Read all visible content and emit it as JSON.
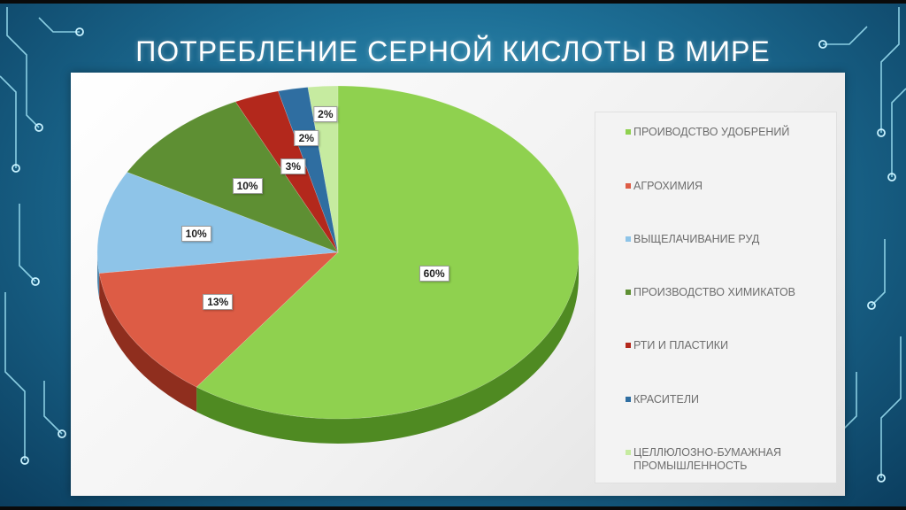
{
  "slide": {
    "title": "ПОТРЕБЛЕНИЕ СЕРНОЙ КИСЛОТЫ В МИРЕ"
  },
  "chart_data": {
    "type": "pie",
    "title": "ПОТРЕБЛЕНИЕ СЕРНОЙ КИСЛОТЫ В МИРЕ",
    "legend_position": "right",
    "three_d": true,
    "unit": "%",
    "slices": [
      {
        "name": "ПРОИВОДСТВО УДОБРЕНИЙ",
        "value": 60,
        "label": "60%",
        "color": "#8fd14f",
        "side_color": "#4f8a22"
      },
      {
        "name": "АГРОХИМИЯ",
        "value": 13,
        "label": "13%",
        "color": "#dd5c45",
        "side_color": "#8f2e1e"
      },
      {
        "name": "ВЫЩЕЛАЧИВАНИЕ РУД",
        "value": 10,
        "label": "10%",
        "color": "#8ec4e8",
        "side_color": "#4d86ad"
      },
      {
        "name": "ПРОИЗВОДСТВО ХИМИКАТОВ",
        "value": 10,
        "label": "10%",
        "color": "#5e8f33",
        "side_color": "#3a5e1c"
      },
      {
        "name": "РТИ И ПЛАСТИКИ",
        "value": 3,
        "label": "3%",
        "color": "#b3281c",
        "side_color": "#6e160f"
      },
      {
        "name": "КРАСИТЕЛИ",
        "value": 2,
        "label": "2%",
        "color": "#2f6ea1",
        "side_color": "#1b4566"
      },
      {
        "name": "ЦЕЛЛЮЛОЗНО-БУМАЖНАЯ ПРОМЫШЛЕННОСТЬ",
        "value": 2,
        "label": "2%",
        "color": "#c6eba0",
        "side_color": "#86ad5e"
      }
    ]
  }
}
